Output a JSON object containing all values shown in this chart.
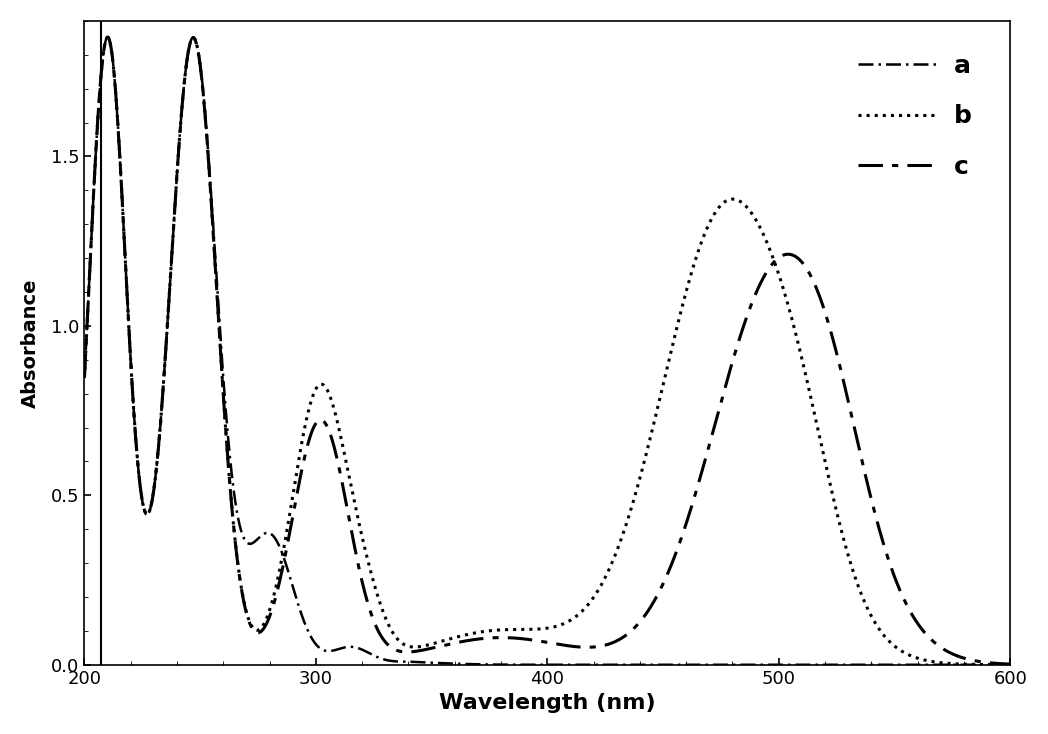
{
  "xlabel": "Wavelength (nm)",
  "ylabel": "Absorbance",
  "xlim": [
    200,
    600
  ],
  "ylim": [
    0.0,
    1.9
  ],
  "yticks": [
    0.0,
    0.5,
    1.0,
    1.5
  ],
  "xticks": [
    200,
    300,
    400,
    500,
    600
  ],
  "legend_labels": [
    "a",
    "b",
    "c"
  ],
  "line_styles": [
    {
      "linestyle": "--",
      "linewidth": 1.5,
      "color": "black",
      "dashes": [
        6,
        2
      ]
    },
    {
      "linestyle": ":",
      "linewidth": 2.5,
      "color": "black"
    },
    {
      "linestyle": "--",
      "linewidth": 2.0,
      "color": "black",
      "dashes": [
        10,
        3,
        3,
        3
      ]
    }
  ],
  "background_color": "#ffffff",
  "xlabel_fontsize": 16,
  "ylabel_fontsize": 14,
  "tick_fontsize": 13,
  "legend_fontsize": 16
}
